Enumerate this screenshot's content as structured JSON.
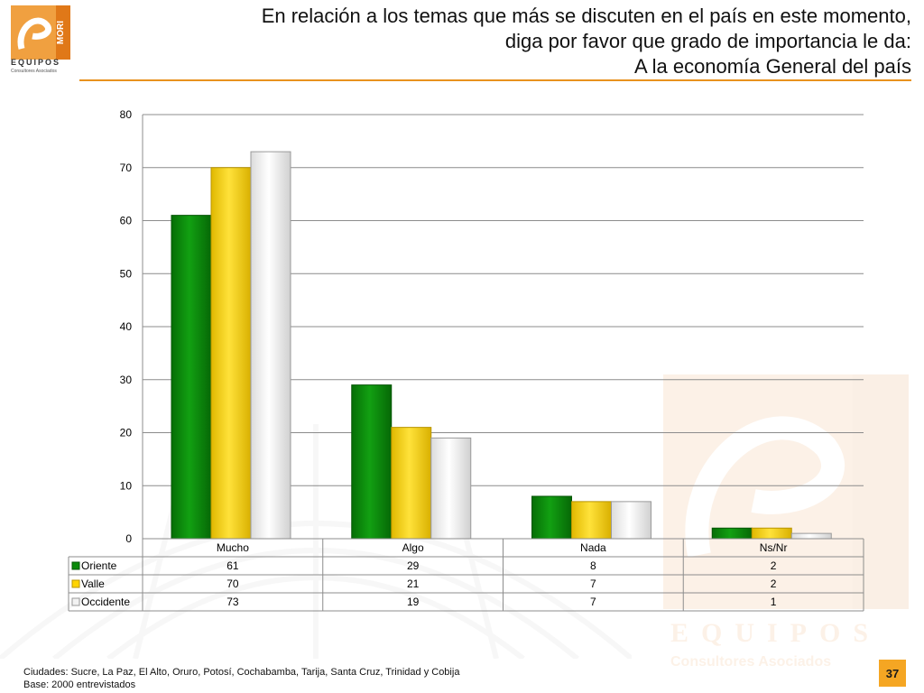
{
  "header": {
    "title_lines": [
      "En relación a los temas que más se discuten en el país en este momento,",
      "diga por favor que grado de importancia le da:",
      "A la economía General del país"
    ],
    "logo_word": "EQUIPOS",
    "logo_mori": "MORI",
    "logo_sub": "Consultores Asociados"
  },
  "chart_data": {
    "type": "bar",
    "categories": [
      "Mucho",
      "Algo",
      "Nada",
      "Ns/Nr"
    ],
    "series": [
      {
        "name": "Oriente",
        "values": [
          61,
          29,
          8,
          2
        ],
        "color": "#0a8a0a"
      },
      {
        "name": "Valle",
        "values": [
          70,
          21,
          7,
          2
        ],
        "color": "#ffd400"
      },
      {
        "name": "Occidente",
        "values": [
          73,
          19,
          7,
          1
        ],
        "color": "#f2f2f2"
      }
    ],
    "ylim": [
      0,
      80
    ],
    "yticks": [
      0,
      10,
      20,
      30,
      40,
      50,
      60,
      70,
      80
    ],
    "grid": true,
    "legend": "data table below chart"
  },
  "footer": {
    "cities": "Ciudades: Sucre, La Paz, El Alto, Oruro, Potosí, Cochabamba, Tarija, Santa Cruz, Trinidad y Cobija",
    "base": "Base: 2000 entrevistados",
    "page": "37"
  },
  "colors": {
    "accent": "#e8921e",
    "page_badge": "#f5a623"
  }
}
